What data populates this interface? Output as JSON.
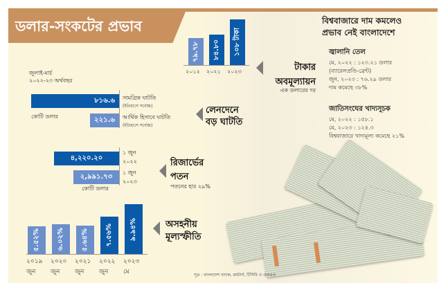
{
  "title": "ডলার-সংকটের প্রভাব",
  "taka": {
    "heading": "টাকার অবমূল্যায়ন",
    "sub": "এক ডলারের দর",
    "bars": [
      {
        "year": "২০১২",
        "label": "৭৯.৭৮",
        "value": 79.78
      },
      {
        "year": "২০২১",
        "label": "৮৪.৮০",
        "value": 84.8
      },
      {
        "year": "২০২৩",
        "label": "১০৮ টাকা",
        "value": 108
      }
    ]
  },
  "deficit": {
    "period1": "জুলাই-মার্চ",
    "period2": "২০২২-২৩ অর্থবছর",
    "unit": "কোটি ডলার",
    "heading1": "লেনদেনে",
    "heading2": "বড় ঘাটতি",
    "bars": [
      {
        "label": "৮১৬.৬",
        "value": 816.6,
        "name": "সামগ্রিক ঘাটতি",
        "note": "(ইতিহাসে সর্বোচ্চ)"
      },
      {
        "label": "২২১.৬",
        "value": 221.6,
        "name": "আর্থিক হিসাবে ঘাটতি",
        "note": "(ইতিহাসে সর্বোচ্চ)"
      }
    ]
  },
  "reserve": {
    "heading1": "রিজার্ভের",
    "heading2": "পতন",
    "sub": "পতনের হার ২৯%",
    "unit": "কোটি ডলার",
    "bars": [
      {
        "label": "৪,২২০.২০",
        "value": 4220.2,
        "date1": "১ জুন",
        "date2": "২০২২"
      },
      {
        "label": "২,৯৯১.৭৩",
        "value": 2991.73,
        "date1": "১ জুন",
        "date2": "২০২৩"
      }
    ]
  },
  "inflation": {
    "heading1": "অসহনীয়",
    "heading2": "মূল্যস্ফীতি",
    "bars": [
      {
        "label": "৫.৫২%",
        "value": 5.52,
        "year": "২০১৯",
        "month": "জুন"
      },
      {
        "label": "৬.০২%",
        "value": 6.02,
        "year": "২০২০",
        "month": "জুন"
      },
      {
        "label": "৫.৬৪%",
        "value": 5.64,
        "year": "২০২১",
        "month": "জুন"
      },
      {
        "label": "৭.৫৬%",
        "value": 7.56,
        "year": "২০২২",
        "month": "জুন"
      },
      {
        "label": "৯.৯৪%",
        "value": 9.94,
        "year": "২০২৩",
        "month": "মে"
      }
    ]
  },
  "world": {
    "heading1": "বিশ্ববাজারে দাম কমলেও",
    "heading2": "প্রভাব নেই বাংলাদেশে",
    "oil": {
      "title": "জ্বালানি তেল",
      "lines": [
        "মে, ২০২২ : ১২৩.২১ ডলার",
        "(ব্যারেলপ্রতি-ব্রেন্ট)",
        "জুন, ২০২৩ : ৭৬.২৯ ডলার",
        "দাম কমেছে ৩৮%"
      ]
    },
    "food": {
      "title": "জাতিসংঘের খাদ্যসূচক",
      "lines": [
        "মে, ২০২২ : ১৫৮.১",
        "মে, ২০২৩ : ১২৪.৩",
        "বিশ্ববাজারে খাদ্যমূল্য কমেছে ২১%"
      ]
    }
  },
  "source": "সূত্র : বাংলাদেশ ব্যাংক, রয়টার্স, টিসিবি ও এফএও",
  "colors": {
    "banner": "#c9915e",
    "dark_blue": "#0b5aa9",
    "light_blue": "#6a8fcb",
    "background": "#fbf5dc"
  }
}
